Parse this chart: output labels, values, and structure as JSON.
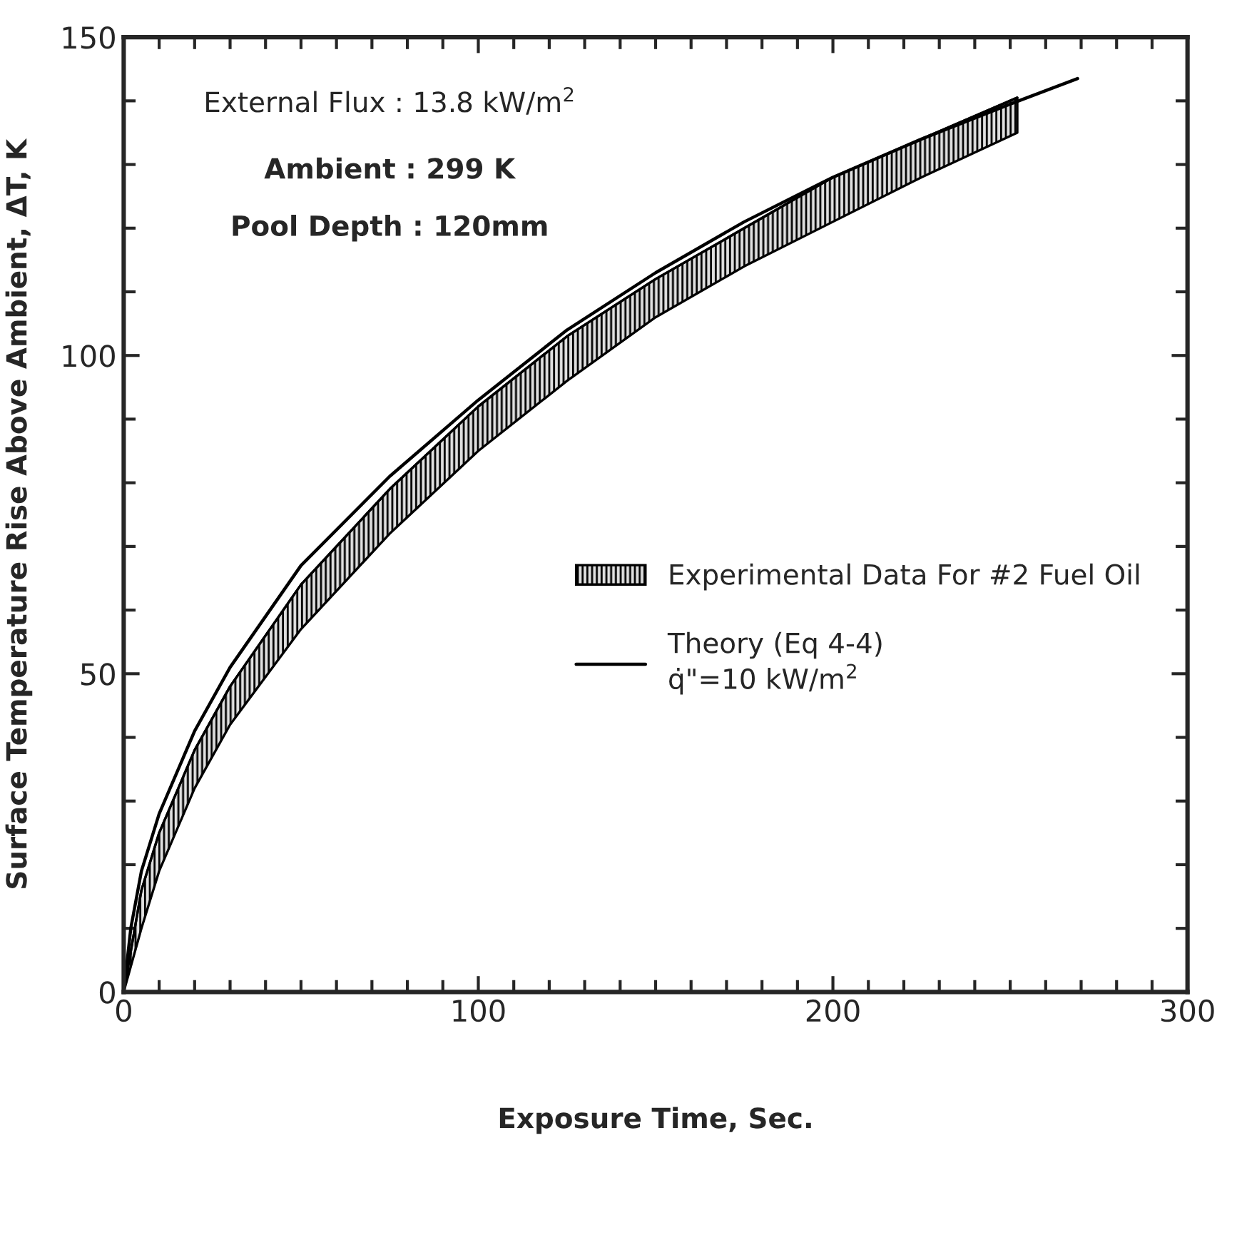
{
  "chart_data": {
    "type": "line",
    "xlabel": "Exposure Time, Sec.",
    "ylabel": "Surface Temperature Rise Above Ambient, ΔT, K",
    "annotations": [
      "External Flux : 13.8 kW/m$^{2}$",
      "Ambient : 299 K",
      "Pool Depth : 120mm"
    ],
    "xlim": [
      0,
      300
    ],
    "ylim": [
      0,
      150
    ],
    "xticks": [
      0,
      100,
      200,
      300
    ],
    "yticks": [
      0,
      50,
      100,
      150
    ],
    "grid": false,
    "legend": "right",
    "marker": "none",
    "series": [
      {
        "name": "Experimental Data For #2 Fuel Oil",
        "type": "line",
        "color": "#000000",
        "x": [
          0,
          5,
          10,
          20,
          30,
          50,
          75,
          100,
          125,
          150,
          175,
          200,
          225,
          252
        ],
        "lower": [
          0,
          10,
          19,
          32,
          42,
          57,
          72,
          85,
          96,
          106,
          114,
          121,
          128,
          135
        ],
        "values": [
          0,
          16,
          25,
          38,
          48,
          64,
          79,
          92,
          103,
          112,
          120,
          128,
          134,
          140.5
        ],
        "upper": [
          0,
          16,
          25,
          38,
          48,
          64,
          79,
          92,
          103,
          112,
          120,
          128,
          134,
          140.5
        ]
      },
      {
        "name": "Theory (Eq 4-4)\nq̇\"=10 kW/m$^{2}$",
        "type": "line",
        "color": "#000000",
        "line_style": "solid",
        "x": [
          0,
          2,
          5,
          10,
          20,
          30,
          50,
          75,
          100,
          125,
          150,
          175,
          200,
          225,
          250,
          269
        ],
        "values": [
          0,
          10,
          19,
          28,
          41,
          51,
          67,
          81,
          93,
          104,
          113,
          121,
          128,
          134,
          139.5,
          143.5
        ]
      }
    ]
  }
}
